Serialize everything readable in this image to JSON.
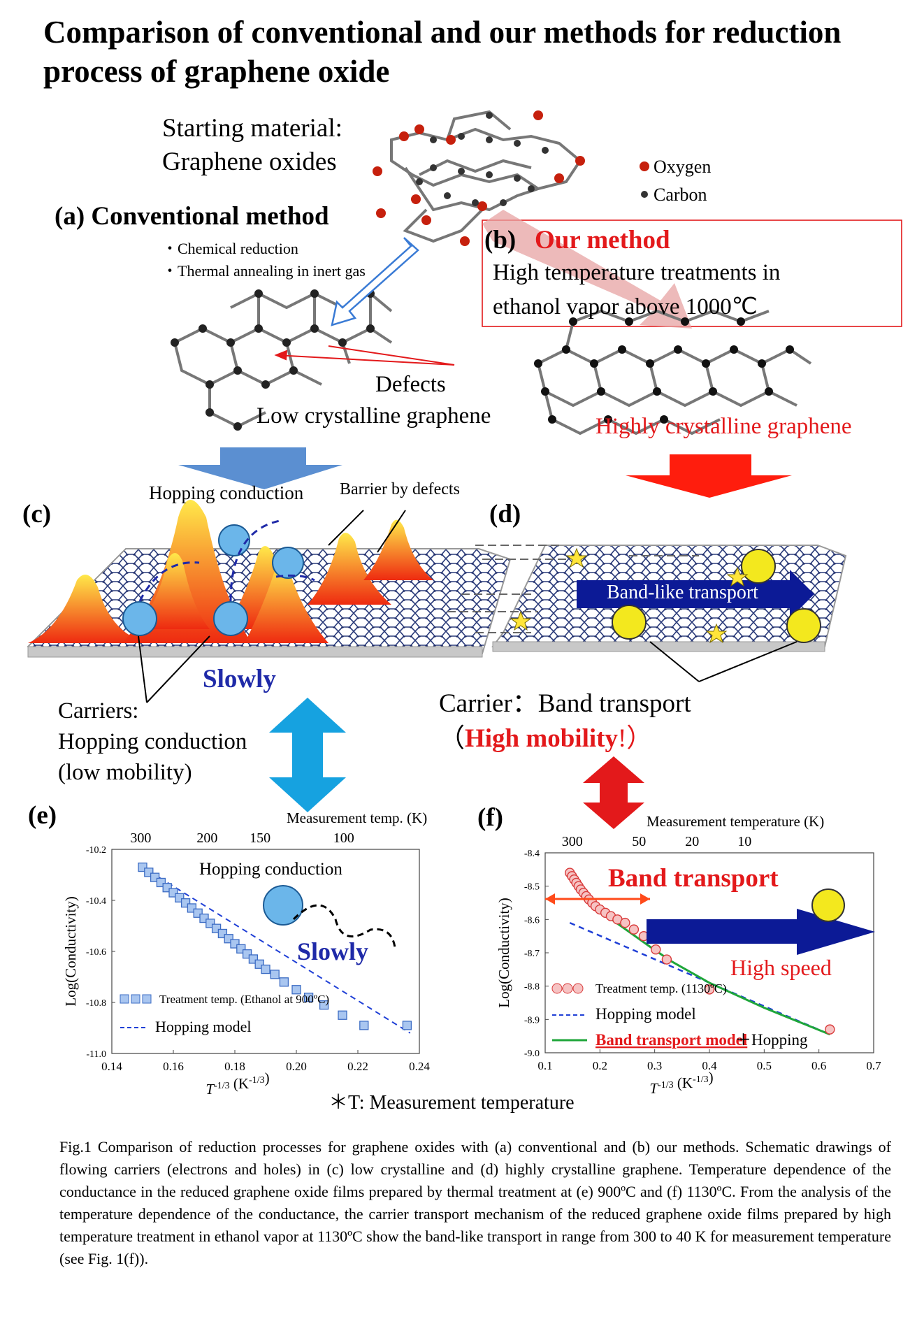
{
  "title": "Comparison of conventional and our methods for reduction process of graphene oxide",
  "starting": {
    "line1": "Starting material:",
    "line2": "Graphene oxides"
  },
  "legend": {
    "oxygen": "Oxygen",
    "carbon": "Carbon"
  },
  "panel_a": {
    "heading": "(a) Conventional method",
    "bullet1": "・Chemical reduction",
    "bullet2": "・Thermal annealing in inert gas",
    "defects": "Defects",
    "result": "Low crystalline graphene"
  },
  "panel_b": {
    "label": "(b)",
    "heading": "Our method",
    "desc1": "High temperature treatments in",
    "desc2": "ethanol vapor above 1000℃",
    "result": "Highly crystalline graphene"
  },
  "panel_c": {
    "label": "(c)",
    "hopping": "Hopping conduction",
    "barrier": "Barrier by defects",
    "slowly": "Slowly",
    "carriers1": "Carriers:",
    "carriers2": "Hopping conduction",
    "carriers3": "(low mobility)"
  },
  "panel_d": {
    "label": "(d)",
    "band": "Band-like transport",
    "carrier_line": "Carrier：Band transport",
    "mob_open": "（",
    "mob_bold": "High mobility",
    "mob_close": "!）"
  },
  "asterisk_note": "＊T:  Measurement temperature",
  "chart_data": [
    {
      "type": "scatter",
      "panel": "(e)",
      "xlabel": "T-1/3 (K-1/3)",
      "ylabel": "Log(Conductivity)",
      "top_axis_label": "Measurement temp. (K)",
      "top_ticks": [
        "300",
        "200",
        "150",
        "100"
      ],
      "top_tick_x": [
        0.1494,
        0.171,
        0.1882,
        0.2154
      ],
      "xlim": [
        0.14,
        0.24
      ],
      "ylim": [
        -11.0,
        -10.2
      ],
      "xticks": [
        "0.14",
        "0.16",
        "0.18",
        "0.20",
        "0.22",
        "0.24"
      ],
      "yticks": [
        "-10.2",
        "-10.4",
        "-10.6",
        "-10.8",
        "-11.0"
      ],
      "annotation_hopping": "Hopping conduction",
      "annotation_slowly": "Slowly",
      "series": [
        {
          "name": "Treatment temp. (Ethanol at 900ºC)",
          "kind": "markers",
          "x": [
            0.15,
            0.152,
            0.154,
            0.156,
            0.158,
            0.16,
            0.162,
            0.164,
            0.166,
            0.168,
            0.17,
            0.172,
            0.174,
            0.176,
            0.178,
            0.18,
            0.182,
            0.184,
            0.186,
            0.188,
            0.19,
            0.193,
            0.196,
            0.2,
            0.204,
            0.209,
            0.215,
            0.222,
            0.236
          ],
          "y": [
            -10.27,
            -10.29,
            -10.31,
            -10.33,
            -10.35,
            -10.37,
            -10.39,
            -10.41,
            -10.43,
            -10.45,
            -10.47,
            -10.49,
            -10.51,
            -10.53,
            -10.55,
            -10.57,
            -10.59,
            -10.61,
            -10.63,
            -10.65,
            -10.67,
            -10.69,
            -10.72,
            -10.75,
            -10.78,
            -10.81,
            -10.85,
            -10.89,
            -10.89
          ]
        },
        {
          "name": "Hopping model",
          "kind": "dashed",
          "x": [
            0.15,
            0.237
          ],
          "y": [
            -10.27,
            -10.92
          ]
        }
      ]
    },
    {
      "type": "scatter",
      "panel": "(f)",
      "xlabel": "T-1/3 (K-1/3)",
      "ylabel": "Log(Conductivity)",
      "top_axis_label": "Measurement temperature (K)",
      "top_ticks": [
        "300",
        "50",
        "20",
        "10"
      ],
      "top_tick_x": [
        0.1494,
        0.2714,
        0.3684,
        0.4642
      ],
      "xlim": [
        0.1,
        0.7
      ],
      "ylim": [
        -9.0,
        -8.4
      ],
      "xticks": [
        "0.1",
        "0.2",
        "0.3",
        "0.4",
        "0.5",
        "0.6",
        "0.7"
      ],
      "yticks": [
        "-8.4",
        "-8.5",
        "-8.6",
        "-8.7",
        "-8.8",
        "-8.9",
        "-9.0"
      ],
      "annotation_band": "Band transport",
      "annotation_speed": "High speed",
      "series": [
        {
          "name": "Treatment  temp. (1130ºC)",
          "kind": "markers",
          "x": [
            0.145,
            0.149,
            0.153,
            0.157,
            0.161,
            0.165,
            0.17,
            0.175,
            0.18,
            0.186,
            0.192,
            0.2,
            0.21,
            0.22,
            0.232,
            0.246,
            0.262,
            0.28,
            0.302,
            0.322,
            0.4,
            0.62
          ],
          "y": [
            -8.46,
            -8.47,
            -8.48,
            -8.49,
            -8.5,
            -8.51,
            -8.52,
            -8.53,
            -8.54,
            -8.55,
            -8.56,
            -8.57,
            -8.58,
            -8.59,
            -8.6,
            -8.61,
            -8.63,
            -8.65,
            -8.69,
            -8.72,
            -8.81,
            -8.93
          ]
        },
        {
          "name": "Hopping model",
          "kind": "dashed",
          "x": [
            0.145,
            0.62
          ],
          "y": [
            -8.61,
            -8.945
          ]
        },
        {
          "name": "Band transport model",
          "suffix": "＋Hopping",
          "kind": "solid",
          "x": [
            0.145,
            0.17,
            0.2,
            0.23,
            0.26,
            0.29,
            0.33,
            0.4,
            0.5,
            0.62
          ],
          "y": [
            -8.46,
            -8.52,
            -8.575,
            -8.61,
            -8.645,
            -8.68,
            -8.725,
            -8.79,
            -8.865,
            -8.945
          ]
        }
      ]
    }
  ],
  "caption": "Fig.1 Comparison of reduction processes for graphene oxides with (a) conventional and (b) our methods. Schematic drawings of flowing carriers (electrons and holes) in (c) low crystalline and (d) highly crystalline graphene. Temperature dependence of the conductance in the reduced graphene oxide films prepared by thermal treatment at (e) 900ºC and (f) 1130ºC. From the analysis of the temperature dependence of the conductance, the carrier transport mechanism of the reduced graphene oxide films prepared by high temperature treatment in ethanol vapor at 1130ºC show the band-like transport in range from 300 to 40 K for measurement temperature (see Fig. 1(f))."
}
